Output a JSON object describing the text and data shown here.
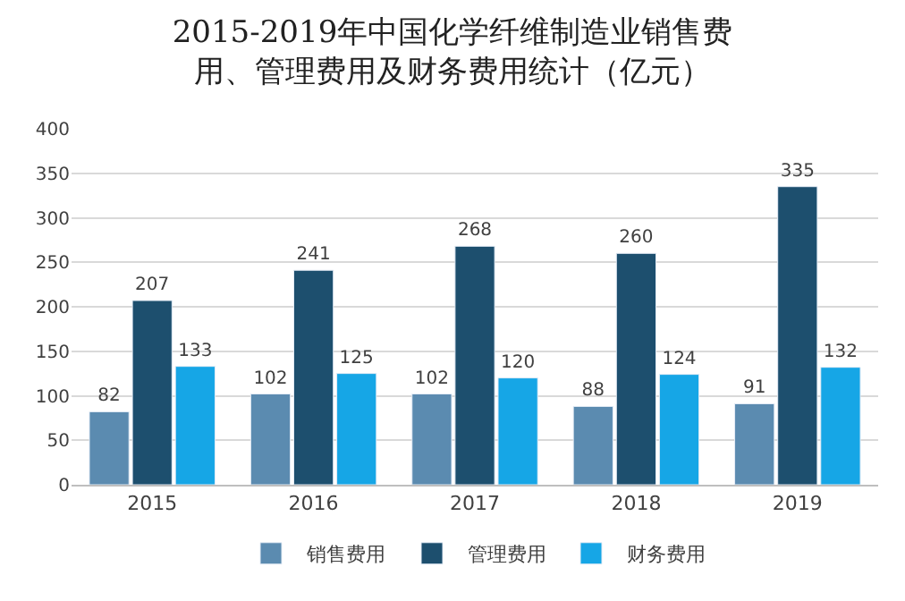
{
  "chart_data": {
    "type": "bar",
    "title": "2015-2019年中国化学纤维制造业销售费用、管理费用及财务费用统计（亿元）",
    "categories": [
      "2015",
      "2016",
      "2017",
      "2018",
      "2019"
    ],
    "series": [
      {
        "name": "销售费用",
        "color": "#5b8bb0",
        "values": [
          82,
          102,
          102,
          88,
          91
        ]
      },
      {
        "name": "管理费用",
        "color": "#1d4f6e",
        "values": [
          207,
          241,
          268,
          260,
          335
        ]
      },
      {
        "name": "财务费用",
        "color": "#16a6e6",
        "values": [
          133,
          125,
          120,
          124,
          132
        ]
      }
    ],
    "ylim": [
      0,
      400
    ],
    "yticks": [
      0,
      50,
      100,
      150,
      200,
      250,
      300,
      350,
      400
    ],
    "grid": "y",
    "legend": "bottom",
    "data_labels": true
  }
}
